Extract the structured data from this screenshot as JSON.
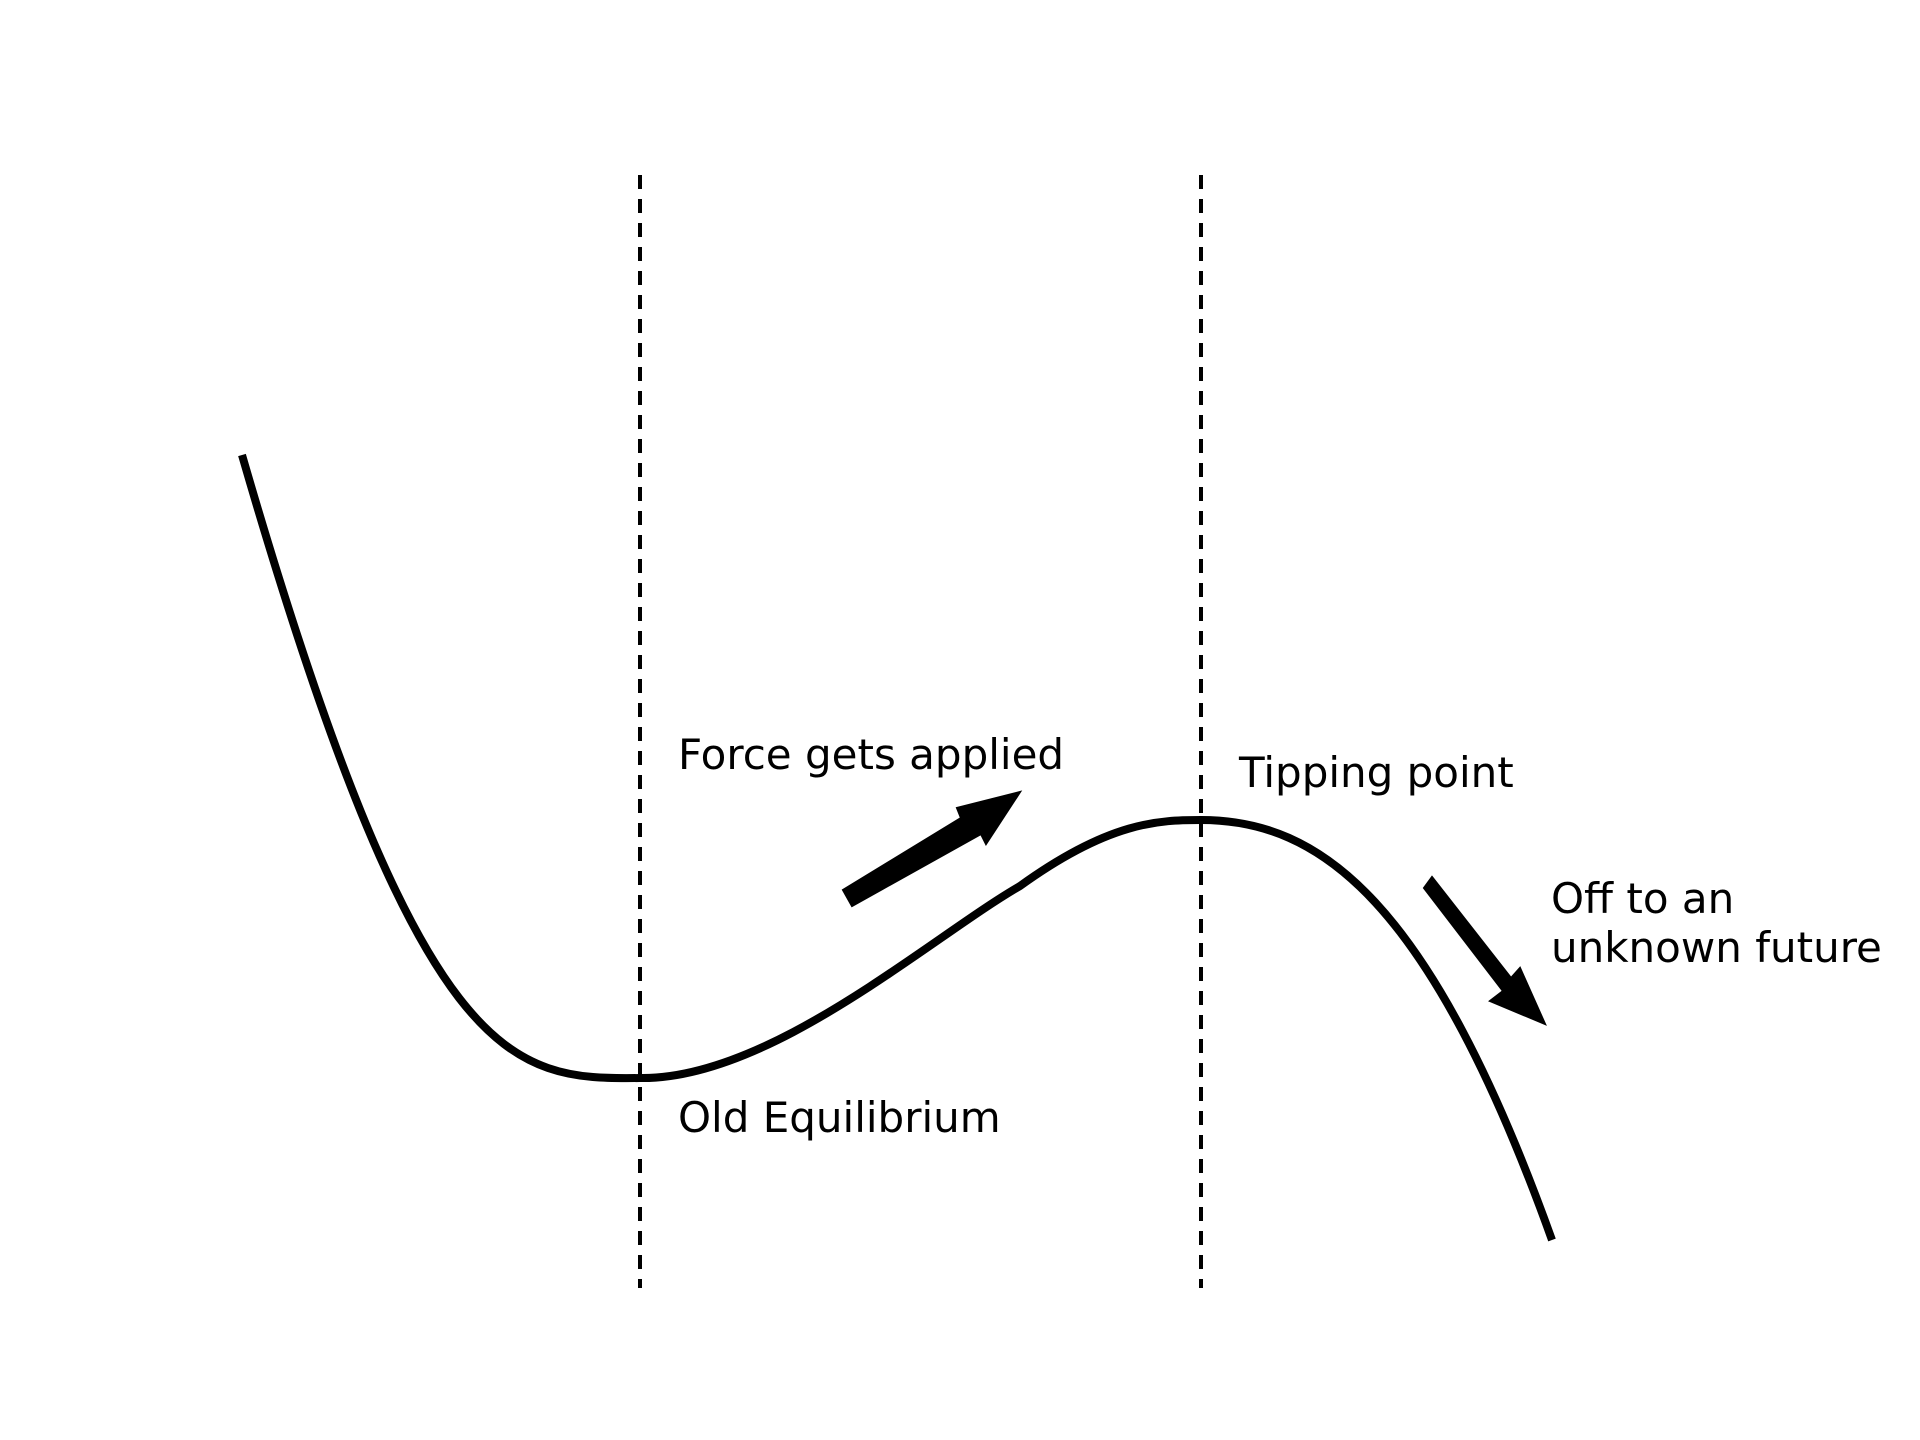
{
  "diagram": {
    "colors": {
      "background": "#ffffff",
      "curve": "#000000",
      "guides": "#000000",
      "arrows": "#000000",
      "text": "#000000"
    },
    "labels": {
      "force": "Force gets applied",
      "tipping": "Tipping point",
      "old_equilibrium": "Old Equilibrium",
      "future_line1": "Off to an",
      "future_line2": "unknown future"
    }
  }
}
